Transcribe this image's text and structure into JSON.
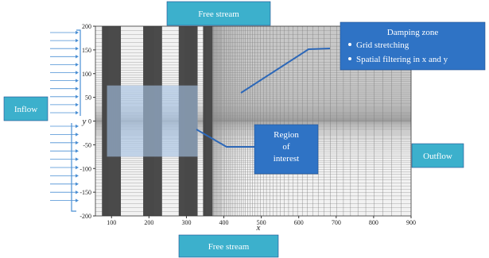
{
  "axes": {
    "xlabel": "x",
    "ylabel": "y",
    "xlim": [
      57,
      900
    ],
    "ylim": [
      -200,
      200
    ],
    "xticks": [
      100,
      200,
      300,
      400,
      500,
      600,
      700,
      800,
      900
    ],
    "yticks": [
      -200,
      -150,
      -100,
      -50,
      0,
      50,
      100,
      150,
      200
    ]
  },
  "labels": {
    "top": "Free stream",
    "bottom": "Free stream",
    "left": "Inflow",
    "right": "Outflow",
    "damping": {
      "title": "Damping zone",
      "items": [
        "Grid stretching",
        "Spatial filtering in x and y"
      ]
    },
    "region": [
      "Region",
      "of",
      "interest"
    ]
  }
}
